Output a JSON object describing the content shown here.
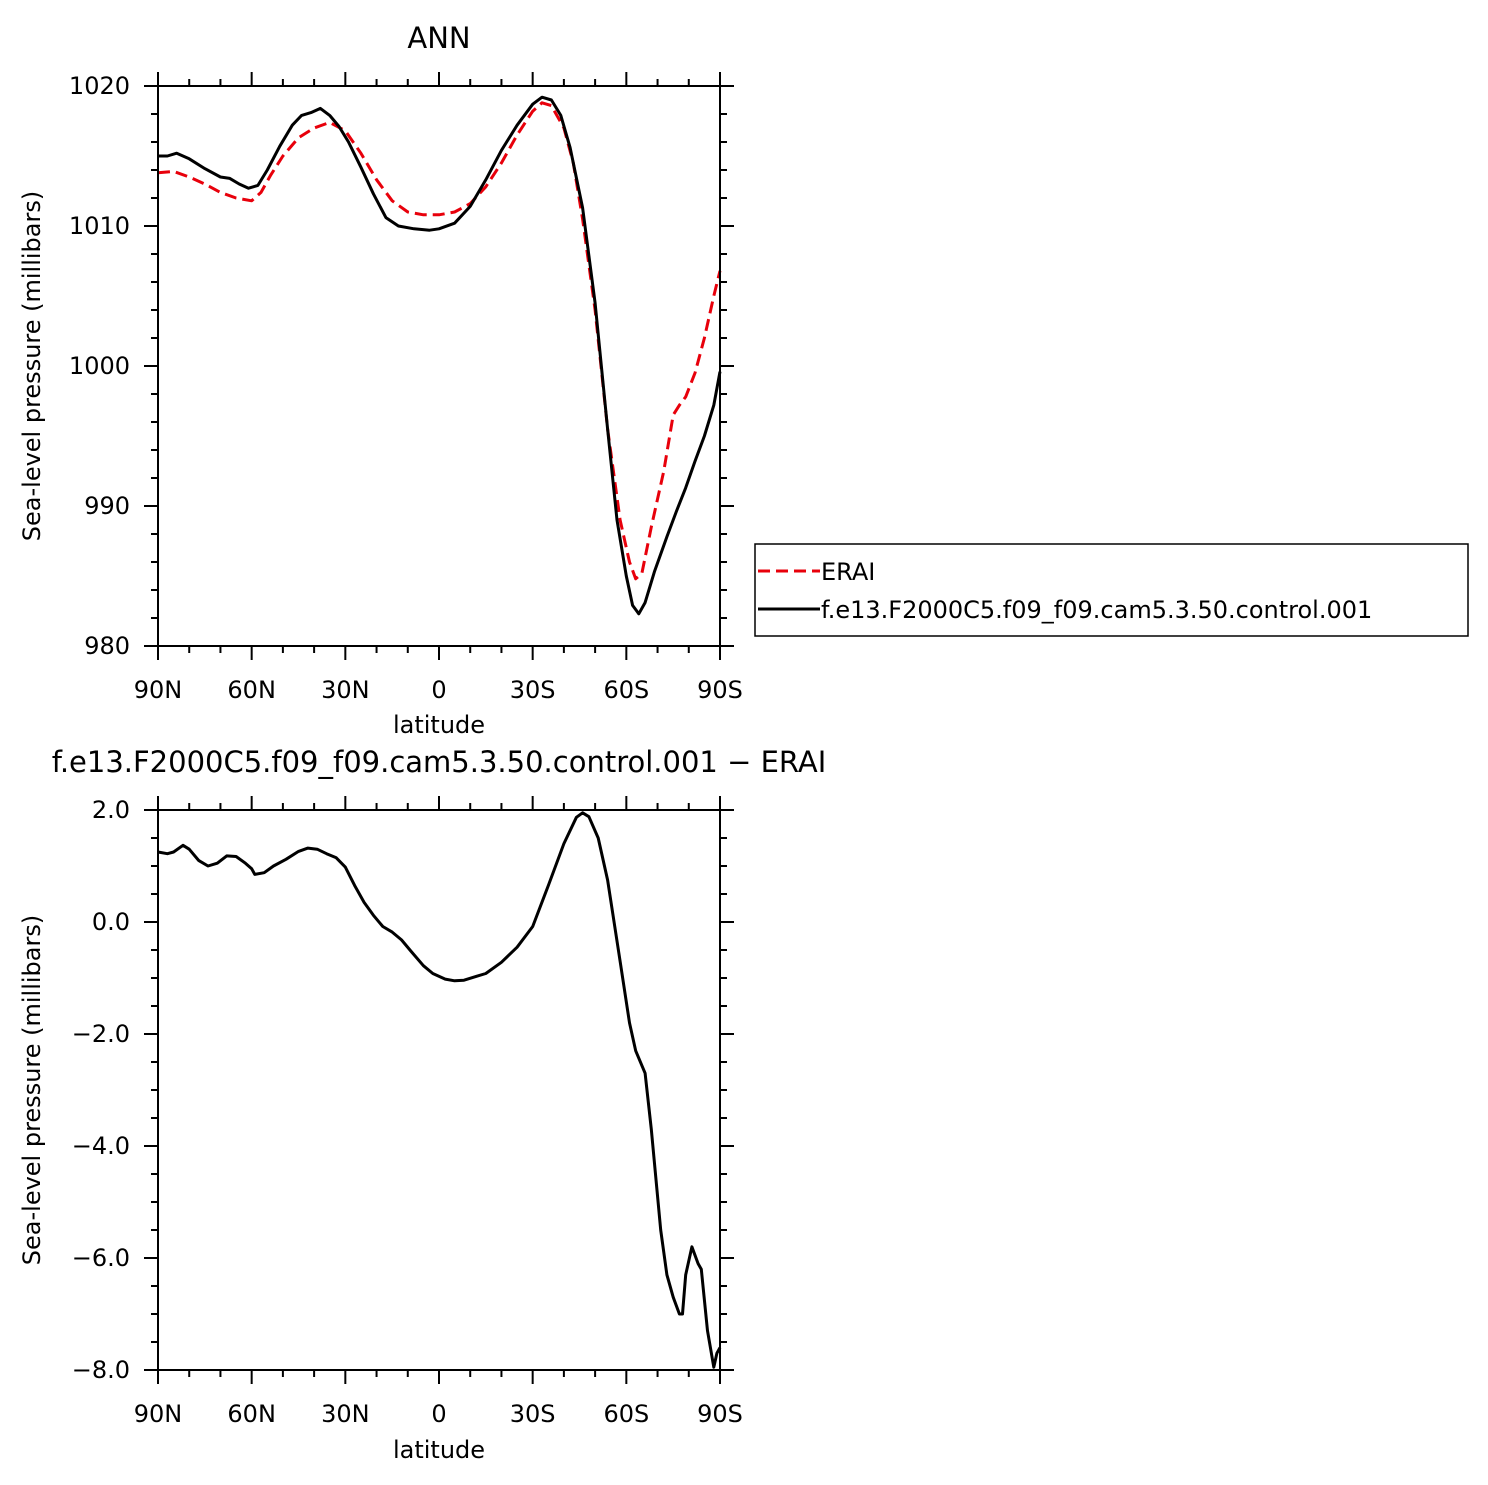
{
  "chart_data": [
    {
      "type": "line",
      "title": "ANN",
      "xlabel": "latitude",
      "ylabel": "Sea-level pressure (millibars)",
      "xlim": [
        90,
        -90
      ],
      "ylim": [
        980,
        1020
      ],
      "x_ticks": [
        {
          "value": 90,
          "label": "90N"
        },
        {
          "value": 60,
          "label": "60N"
        },
        {
          "value": 30,
          "label": "30N"
        },
        {
          "value": 0,
          "label": "0"
        },
        {
          "value": -30,
          "label": "30S"
        },
        {
          "value": -60,
          "label": "60S"
        },
        {
          "value": -90,
          "label": "90S"
        }
      ],
      "y_ticks": [
        {
          "value": 980,
          "label": "980"
        },
        {
          "value": 990,
          "label": "990"
        },
        {
          "value": 1000,
          "label": "1000"
        },
        {
          "value": 1010,
          "label": "1010"
        },
        {
          "value": 1020,
          "label": "1020"
        }
      ],
      "legend": {
        "placement": "right"
      },
      "series": [
        {
          "name": "ERAI",
          "color": "#e8000b",
          "dash": "dashed",
          "points": [
            [
              90,
              1013.8
            ],
            [
              85,
              1013.9
            ],
            [
              80,
              1013.5
            ],
            [
              75,
              1013.0
            ],
            [
              70,
              1012.4
            ],
            [
              65,
              1012.0
            ],
            [
              60,
              1011.8
            ],
            [
              57,
              1012.4
            ],
            [
              54,
              1013.6
            ],
            [
              50,
              1015.0
            ],
            [
              45,
              1016.3
            ],
            [
              40,
              1017.0
            ],
            [
              35,
              1017.4
            ],
            [
              30,
              1016.8
            ],
            [
              25,
              1015.2
            ],
            [
              20,
              1013.3
            ],
            [
              15,
              1011.8
            ],
            [
              10,
              1011.0
            ],
            [
              5,
              1010.8
            ],
            [
              0,
              1010.8
            ],
            [
              -5,
              1011.0
            ],
            [
              -10,
              1011.6
            ],
            [
              -15,
              1012.8
            ],
            [
              -20,
              1014.5
            ],
            [
              -25,
              1016.5
            ],
            [
              -30,
              1018.2
            ],
            [
              -33,
              1018.8
            ],
            [
              -36,
              1018.6
            ],
            [
              -40,
              1017.0
            ],
            [
              -43,
              1014.5
            ],
            [
              -46,
              1010.5
            ],
            [
              -50,
              1004.0
            ],
            [
              -54,
              995.5
            ],
            [
              -58,
              989.0
            ],
            [
              -61,
              986.0
            ],
            [
              -63,
              984.8
            ],
            [
              -65,
              985.2
            ],
            [
              -68,
              988.5
            ],
            [
              -72,
              992.5
            ],
            [
              -75,
              996.5
            ],
            [
              -77,
              997.2
            ],
            [
              -79,
              997.8
            ],
            [
              -82,
              999.5
            ],
            [
              -85,
              1002.0
            ],
            [
              -88,
              1005.0
            ],
            [
              -90,
              1006.8
            ]
          ]
        },
        {
          "name": "f.e13.F2000C5.f09_f09.cam5.3.50.control.001",
          "color": "#000000",
          "dash": "solid",
          "points": [
            [
              90,
              1015.0
            ],
            [
              87,
              1015.0
            ],
            [
              84,
              1015.2
            ],
            [
              80,
              1014.8
            ],
            [
              75,
              1014.1
            ],
            [
              70,
              1013.5
            ],
            [
              67,
              1013.4
            ],
            [
              64,
              1013.0
            ],
            [
              61,
              1012.7
            ],
            [
              58,
              1012.9
            ],
            [
              55,
              1014.0
            ],
            [
              51,
              1015.7
            ],
            [
              47,
              1017.2
            ],
            [
              44,
              1017.9
            ],
            [
              41,
              1018.1
            ],
            [
              38,
              1018.4
            ],
            [
              35,
              1017.9
            ],
            [
              32,
              1017.1
            ],
            [
              29,
              1016.0
            ],
            [
              25,
              1014.2
            ],
            [
              21,
              1012.3
            ],
            [
              17,
              1010.6
            ],
            [
              13,
              1010.0
            ],
            [
              8,
              1009.8
            ],
            [
              3,
              1009.7
            ],
            [
              0,
              1009.8
            ],
            [
              -5,
              1010.2
            ],
            [
              -10,
              1011.4
            ],
            [
              -15,
              1013.3
            ],
            [
              -20,
              1015.4
            ],
            [
              -25,
              1017.2
            ],
            [
              -30,
              1018.7
            ],
            [
              -33,
              1019.2
            ],
            [
              -36,
              1019.0
            ],
            [
              -39,
              1017.9
            ],
            [
              -42,
              1015.6
            ],
            [
              -46,
              1011.3
            ],
            [
              -50,
              1004.5
            ],
            [
              -54,
              995.5
            ],
            [
              -57,
              989.0
            ],
            [
              -60,
              985.0
            ],
            [
              -62,
              982.9
            ],
            [
              -64,
              982.3
            ],
            [
              -66,
              983.1
            ],
            [
              -69,
              985.3
            ],
            [
              -73,
              987.8
            ],
            [
              -76,
              989.6
            ],
            [
              -79,
              991.3
            ],
            [
              -82,
              993.2
            ],
            [
              -85,
              995.0
            ],
            [
              -88,
              997.2
            ],
            [
              -90,
              999.6
            ]
          ]
        }
      ]
    },
    {
      "type": "line",
      "title": "f.e13.F2000C5.f09_f09.cam5.3.50.control.001  −  ERAI",
      "xlabel": "latitude",
      "ylabel": "Sea-level pressure (millibars)",
      "xlim": [
        90,
        -90
      ],
      "ylim": [
        -8,
        2
      ],
      "x_ticks": [
        {
          "value": 90,
          "label": "90N"
        },
        {
          "value": 60,
          "label": "60N"
        },
        {
          "value": 30,
          "label": "30N"
        },
        {
          "value": 0,
          "label": "0"
        },
        {
          "value": -30,
          "label": "30S"
        },
        {
          "value": -60,
          "label": "60S"
        },
        {
          "value": -90,
          "label": "90S"
        }
      ],
      "y_ticks": [
        {
          "value": -8,
          "label": "−8.0"
        },
        {
          "value": -6,
          "label": "−6.0"
        },
        {
          "value": -4,
          "label": "−4.0"
        },
        {
          "value": -2,
          "label": "−2.0"
        },
        {
          "value": 0,
          "label": "0.0"
        },
        {
          "value": 2,
          "label": "2.0"
        }
      ],
      "series": [
        {
          "color": "#000000",
          "dash": "solid",
          "points": [
            [
              90,
              1.25
            ],
            [
              87,
              1.22
            ],
            [
              85,
              1.25
            ],
            [
              82,
              1.37
            ],
            [
              80,
              1.3
            ],
            [
              77,
              1.1
            ],
            [
              74,
              1.0
            ],
            [
              71,
              1.05
            ],
            [
              68,
              1.18
            ],
            [
              65,
              1.17
            ],
            [
              62,
              1.05
            ],
            [
              60,
              0.95
            ],
            [
              59,
              0.85
            ],
            [
              56,
              0.88
            ],
            [
              53,
              1.0
            ],
            [
              49,
              1.12
            ],
            [
              45,
              1.26
            ],
            [
              42,
              1.32
            ],
            [
              39,
              1.3
            ],
            [
              36,
              1.22
            ],
            [
              33,
              1.15
            ],
            [
              30,
              0.98
            ],
            [
              27,
              0.65
            ],
            [
              24,
              0.35
            ],
            [
              21,
              0.12
            ],
            [
              18,
              -0.08
            ],
            [
              15,
              -0.18
            ],
            [
              12,
              -0.32
            ],
            [
              9,
              -0.52
            ],
            [
              5,
              -0.78
            ],
            [
              2,
              -0.92
            ],
            [
              -2,
              -1.02
            ],
            [
              -5,
              -1.05
            ],
            [
              -8,
              -1.04
            ],
            [
              -12,
              -0.97
            ],
            [
              -15,
              -0.92
            ],
            [
              -20,
              -0.72
            ],
            [
              -25,
              -0.45
            ],
            [
              -30,
              -0.08
            ],
            [
              -35,
              0.65
            ],
            [
              -40,
              1.4
            ],
            [
              -44,
              1.87
            ],
            [
              -46,
              1.95
            ],
            [
              -48,
              1.88
            ],
            [
              -51,
              1.5
            ],
            [
              -54,
              0.75
            ],
            [
              -58,
              -0.7
            ],
            [
              -61,
              -1.8
            ],
            [
              -63,
              -2.3
            ],
            [
              -66,
              -2.7
            ],
            [
              -68,
              -3.7
            ],
            [
              -71,
              -5.5
            ],
            [
              -73,
              -6.3
            ],
            [
              -75,
              -6.7
            ],
            [
              -77,
              -7.0
            ],
            [
              -78,
              -7.0
            ],
            [
              -79,
              -6.3
            ],
            [
              -81,
              -5.8
            ],
            [
              -83,
              -6.1
            ],
            [
              -84,
              -6.2
            ],
            [
              -86,
              -7.3
            ],
            [
              -88,
              -7.95
            ],
            [
              -89,
              -7.7
            ],
            [
              -90,
              -7.6
            ]
          ]
        }
      ]
    }
  ]
}
